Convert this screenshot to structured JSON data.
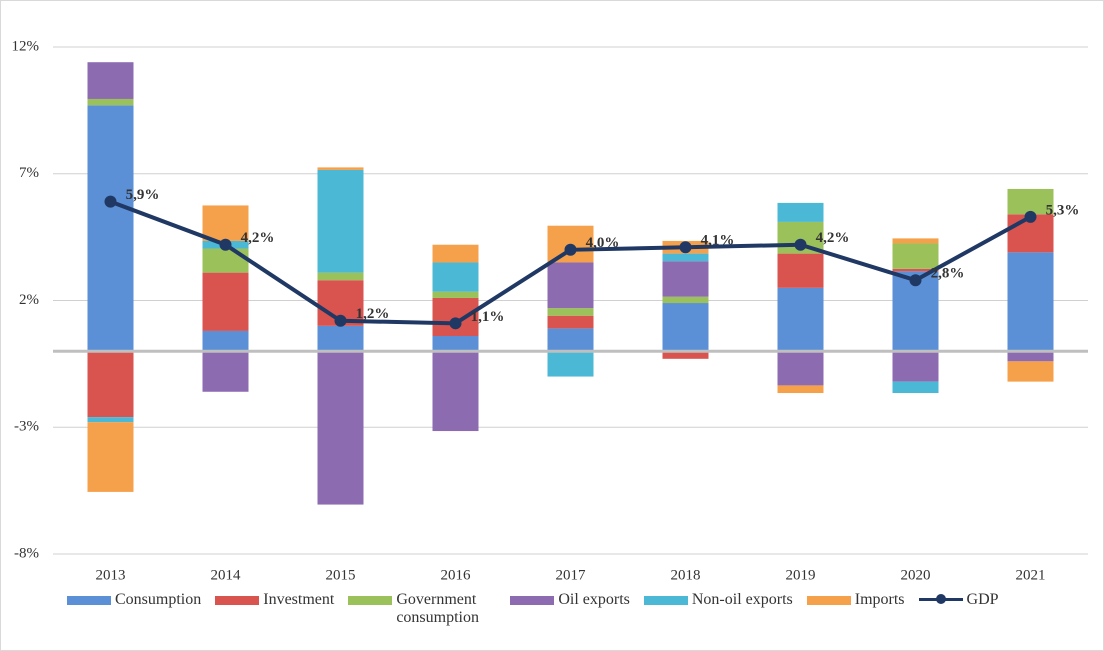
{
  "chart_data": {
    "type": "bar",
    "categories": [
      "2013",
      "2014",
      "2015",
      "2016",
      "2017",
      "2018",
      "2019",
      "2020",
      "2021"
    ],
    "ylim": [
      -8,
      12
    ],
    "yticks": [
      {
        "value": -8,
        "label": "-8%"
      },
      {
        "value": -3,
        "label": "-3%"
      },
      {
        "value": 2,
        "label": "2%"
      },
      {
        "value": 7,
        "label": "7%"
      },
      {
        "value": 12,
        "label": "12%"
      }
    ],
    "grid": true,
    "legend": "bottom",
    "series": [
      {
        "name": "Consumption",
        "color": "#5b8fd6",
        "values": [
          9.7,
          0.8,
          1.0,
          0.6,
          0.9,
          1.9,
          2.5,
          3.15,
          3.9
        ]
      },
      {
        "name": "Investment",
        "color": "#d9534f",
        "values": [
          -2.6,
          2.3,
          1.8,
          1.5,
          0.5,
          -0.3,
          1.35,
          0.1,
          1.5
        ]
      },
      {
        "name": "Government consumption",
        "color": "#9bc25a",
        "values": [
          0.25,
          0.95,
          0.3,
          0.25,
          0.3,
          0.25,
          1.25,
          1.0,
          1.0
        ]
      },
      {
        "name": "Oil exports",
        "color": "#8c6bb1",
        "values": [
          1.45,
          -1.6,
          -6.05,
          -3.15,
          1.8,
          1.4,
          -1.35,
          -1.2,
          -0.4
        ]
      },
      {
        "name": "Non-oil exports",
        "color": "#4bb8d6",
        "values": [
          -0.2,
          0.3,
          4.05,
          1.15,
          -1.0,
          0.3,
          0.75,
          -0.45,
          0
        ]
      },
      {
        "name": "Imports",
        "color": "#f5a04a",
        "values": [
          -2.75,
          1.4,
          0.1,
          0.7,
          1.45,
          0.5,
          -0.3,
          0.2,
          -0.8
        ]
      },
      {
        "name": "GDP",
        "type": "line",
        "color": "#203864",
        "values": [
          5.9,
          4.2,
          1.2,
          1.1,
          4.0,
          4.1,
          4.2,
          2.8,
          5.3
        ],
        "value_labels": [
          "5,9%",
          "4,2%",
          "1,2%",
          "1,1%",
          "4,0%",
          "4,1%",
          "4,2%",
          "2,8%",
          "5,3%"
        ]
      }
    ]
  }
}
